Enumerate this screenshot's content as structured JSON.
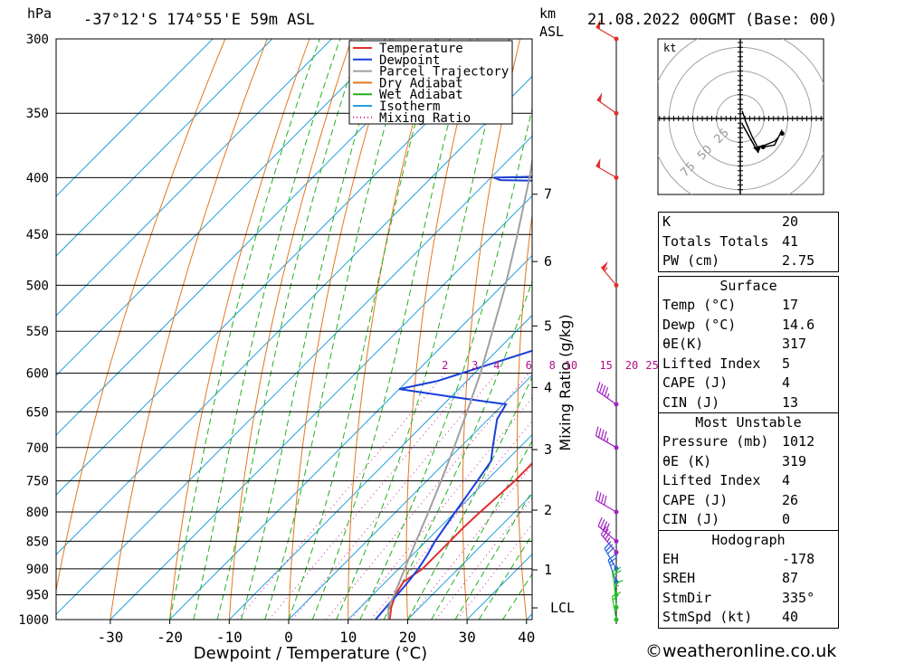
{
  "header": {
    "unit_left": "hPa",
    "location": "-37°12'S 174°55'E 59m ASL",
    "unit_km": "km",
    "unit_asl": "ASL",
    "datetime": "21.08.2022 00GMT (Base: 00)"
  },
  "chart_data": {
    "type": "line",
    "xlabel": "Dewpoint / Temperature (°C)",
    "ylabel": "Mixing Ratio (g/kg)",
    "pressure_levels": [
      300,
      350,
      400,
      450,
      500,
      550,
      600,
      650,
      700,
      750,
      800,
      850,
      900,
      950,
      1000
    ],
    "x_ticks": [
      -30,
      -20,
      -10,
      0,
      10,
      20,
      30,
      40
    ],
    "km_ticks": [
      {
        "label": "1",
        "p": 902
      },
      {
        "label": "2",
        "p": 797
      },
      {
        "label": "3",
        "p": 703
      },
      {
        "label": "4",
        "p": 618
      },
      {
        "label": "5",
        "p": 544
      },
      {
        "label": "6",
        "p": 476
      },
      {
        "label": "7",
        "p": 414
      },
      {
        "label": "LCL",
        "p": 976
      }
    ],
    "mixing_ratio_labels": [
      "2",
      "3",
      "4",
      "6",
      "8",
      "10",
      "15",
      "20",
      "25"
    ],
    "mixing_ratio_values": [
      2,
      3,
      4,
      6,
      8,
      10,
      15,
      20,
      25
    ],
    "legend": [
      {
        "name": "Temperature",
        "color": "#e03030",
        "style": "solid"
      },
      {
        "name": "Dewpoint",
        "color": "#1a3fd8",
        "style": "solid"
      },
      {
        "name": "Parcel Trajectory",
        "color": "#a0a0a0",
        "style": "solid"
      },
      {
        "name": "Dry Adiabat",
        "color": "#e07820",
        "style": "solid"
      },
      {
        "name": "Wet Adiabat",
        "color": "#20b020",
        "style": "solid"
      },
      {
        "name": "Isotherm",
        "color": "#20a0e0",
        "style": "solid"
      },
      {
        "name": "Mixing Ratio",
        "color": "#d020a0",
        "style": "dotted"
      }
    ],
    "series": [
      {
        "name": "Temperature",
        "color": "#e03030",
        "points": [
          [
            1000,
            17.0
          ],
          [
            975,
            15.2
          ],
          [
            950,
            13.8
          ],
          [
            925,
            13.0
          ],
          [
            900,
            14.0
          ],
          [
            875,
            14.0
          ],
          [
            850,
            14.0
          ],
          [
            825,
            14.0
          ],
          [
            800,
            14.2
          ],
          [
            775,
            14.5
          ],
          [
            750,
            14.8
          ],
          [
            725,
            14.8
          ],
          [
            700,
            14.5
          ],
          [
            675,
            13.3
          ],
          [
            650,
            11.8
          ],
          [
            625,
            11.5
          ],
          [
            615,
            12.8
          ],
          [
            600,
            11.5
          ],
          [
            575,
            9.0
          ],
          [
            550,
            7.0
          ],
          [
            525,
            6.0
          ],
          [
            500,
            4.5
          ],
          [
            475,
            2.5
          ],
          [
            450,
            0.0
          ],
          [
            425,
            -3.0
          ],
          [
            410,
            -5.0
          ],
          [
            403,
            -6.5
          ],
          [
            400,
            -6.5
          ],
          [
            390,
            -7.5
          ],
          [
            350,
            -12.5
          ],
          [
            300,
            -19.0
          ]
        ]
      },
      {
        "name": "Dewpoint",
        "color": "#1a3fd8",
        "points": [
          [
            1000,
            14.6
          ],
          [
            975,
            14.3
          ],
          [
            950,
            14.1
          ],
          [
            925,
            13.8
          ],
          [
            900,
            13.3
          ],
          [
            875,
            12.5
          ],
          [
            850,
            11.5
          ],
          [
            800,
            10.0
          ],
          [
            750,
            8.5
          ],
          [
            720,
            7.5
          ],
          [
            700,
            5.5
          ],
          [
            660,
            1.5
          ],
          [
            640,
            0.5
          ],
          [
            630,
            -10.0
          ],
          [
            620,
            -20.0
          ],
          [
            610,
            -15.0
          ],
          [
            550,
            3.0
          ],
          [
            510,
            -4.0
          ],
          [
            500,
            -1.5
          ],
          [
            405,
            -1.5
          ],
          [
            403,
            -27.5
          ],
          [
            402,
            -38.0
          ],
          [
            400,
            -39.5
          ],
          [
            399,
            -31.0
          ],
          [
            300,
            -30.0
          ]
        ]
      },
      {
        "name": "Parcel Trajectory",
        "color": "#a0a0a0",
        "points": [
          [
            1000,
            16.8
          ],
          [
            976,
            14.8
          ],
          [
            950,
            13.6
          ],
          [
            900,
            11.0
          ],
          [
            850,
            8.3
          ],
          [
            800,
            5.5
          ],
          [
            750,
            2.4
          ],
          [
            700,
            -1.0
          ],
          [
            650,
            -4.8
          ],
          [
            600,
            -9.0
          ],
          [
            550,
            -14.0
          ],
          [
            500,
            -19.5
          ],
          [
            450,
            -26.0
          ],
          [
            400,
            -33.5
          ],
          [
            350,
            -42.5
          ],
          [
            300,
            -53.0
          ]
        ]
      }
    ],
    "wind_barbs": [
      {
        "p": 300,
        "dir": 300,
        "spd": 50
      },
      {
        "p": 350,
        "dir": 305,
        "spd": 50
      },
      {
        "p": 400,
        "dir": 300,
        "spd": 50
      },
      {
        "p": 500,
        "dir": 320,
        "spd": 55
      },
      {
        "p": 640,
        "dir": 305,
        "spd": 45
      },
      {
        "p": 700,
        "dir": 300,
        "spd": 45
      },
      {
        "p": 800,
        "dir": 300,
        "spd": 40
      },
      {
        "p": 850,
        "dir": 310,
        "spd": 40
      },
      {
        "p": 870,
        "dir": 320,
        "spd": 35
      },
      {
        "p": 900,
        "dir": 330,
        "spd": 30
      },
      {
        "p": 925,
        "dir": 340,
        "spd": 25
      },
      {
        "p": 950,
        "dir": 350,
        "spd": 20
      },
      {
        "p": 975,
        "dir": 355,
        "spd": 15
      },
      {
        "p": 1000,
        "dir": 350,
        "spd": 15
      }
    ],
    "hodograph": {
      "unit_label": "kt",
      "ring_labels": [
        "25",
        "50",
        "75"
      ],
      "ring_radii_kt": [
        25,
        50,
        75
      ],
      "trace_uv": [
        [
          1,
          4
        ],
        [
          3,
          -2
        ],
        [
          6,
          -9
        ],
        [
          9,
          -15
        ],
        [
          13,
          -14
        ],
        [
          18,
          -12
        ],
        [
          20,
          -10
        ],
        [
          22,
          -6
        ],
        [
          20,
          -10
        ],
        [
          18,
          -14
        ],
        [
          12,
          -15
        ]
      ],
      "storm_motion_uv": [
        -8.5,
        -18
      ]
    }
  },
  "stats": {
    "indices": [
      {
        "label": "K",
        "value": "20"
      },
      {
        "label": "Totals Totals",
        "value": "41"
      },
      {
        "label": "PW (cm)",
        "value": "2.75"
      }
    ],
    "surface_title": "Surface",
    "surface": [
      {
        "label": "Temp (°C)",
        "value": "17"
      },
      {
        "label": "Dewp (°C)",
        "value": "14.6"
      },
      {
        "label": "θE(K)",
        "value": "317"
      },
      {
        "label": "Lifted Index",
        "value": "5"
      },
      {
        "label": "CAPE (J)",
        "value": "4"
      },
      {
        "label": "CIN (J)",
        "value": "13"
      }
    ],
    "mu_title": "Most Unstable",
    "most_unstable": [
      {
        "label": "Pressure (mb)",
        "value": "1012"
      },
      {
        "label": "θE (K)",
        "value": "319"
      },
      {
        "label": "Lifted Index",
        "value": "4"
      },
      {
        "label": "CAPE (J)",
        "value": "26"
      },
      {
        "label": "CIN (J)",
        "value": "0"
      }
    ],
    "hodo_title": "Hodograph",
    "hodograph": [
      {
        "label": "EH",
        "value": "-178"
      },
      {
        "label": "SREH",
        "value": "87"
      },
      {
        "label": "StmDir",
        "value": "335°"
      },
      {
        "label": "StmSpd (kt)",
        "value": "40"
      }
    ]
  },
  "footer": {
    "copyright": "©weatheronline.co.uk"
  }
}
